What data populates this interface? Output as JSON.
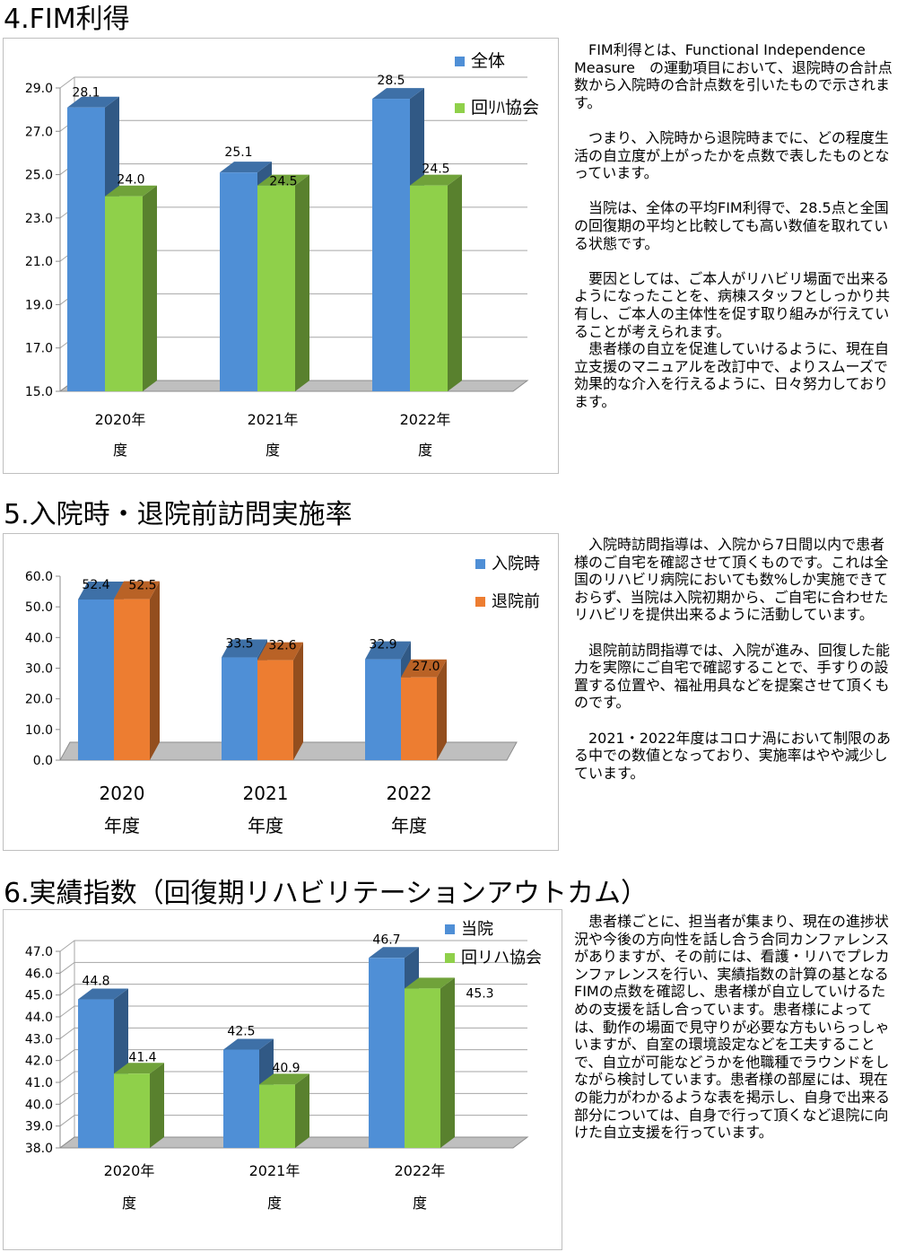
{
  "sections": [
    {
      "title": "4.FIM利得",
      "paragraphs": [
        "FIM利得とは、Functional Independence Measure　の運動項目において、退院時の合計点数から入院時の合計点数を引いたもので示されます。",
        "つまり、入院時から退院時までに、どの程度生活の自立度が上がったかを点数で表したものとなっています。",
        "当院は、全体の平均FIM利得で、28.5点と全国の回復期の平均と比較しても高い数値を取れている状態です。",
        "要因としては、ご本人がリハビリ場面で出来るようになったことを、病棟スタッフとしっかり共有し、ご本人の主体性を促す取り組みが行えていることが考えられます。",
        "患者様の自立を促進していけるように、現在自立支援のマニュアルを改訂中で、よりスムーズで効果的な介入を行えるように、日々努力しております。"
      ]
    },
    {
      "title": "5.入院時・退院前訪問実施率",
      "paragraphs": [
        "入院時訪問指導は、入院から7日間以内で患者様のご自宅を確認させて頂くものです。これは全国のリハビリ病院においても数%しか実施できておらず、当院は入院初期から、ご自宅に合わせたリハビリを提供出来るように活動しています。",
        "退院前訪問指導では、入院が進み、回復した能力を実際にご自宅で確認することで、手すりの設置する位置や、福祉用具などを提案させて頂くものです。",
        "2021・2022年度はコロナ渦において制限のある中での数値となっており、実施率はやや減少しています。"
      ]
    },
    {
      "title": "6.実績指数（回復期リハビリテーションアウトカム）",
      "paragraphs": [
        "患者様ごとに、担当者が集まり、現在の進捗状況や今後の方向性を話し合う合同カンファレンスがありますが、その前には、看護・リハでプレカンファレンスを行い、実績指数の計算の基となるFIMの点数を確認し、患者様が自立していけるための支援を話し合っています。患者様によっては、動作の場面で見守りが必要な方もいらっしゃいますが、自室の環境設定などを工夫することで、自立が可能などうかを他職種でラウンドをしながら検討しています。患者様の部屋には、現在の能力がわかるような表を掲示し、自身で出来る部分については、自身で行って頂くなど退院に向けた自立支援を行っています。"
      ]
    }
  ],
  "chart_data": [
    {
      "type": "bar",
      "categories": [
        "2020年度",
        "2021年度",
        "2022年度"
      ],
      "category_lines": [
        [
          "2020年",
          "度"
        ],
        [
          "2021年",
          "度"
        ],
        [
          "2022年",
          "度"
        ]
      ],
      "series": [
        {
          "name": "全体",
          "values": [
            28.1,
            25.1,
            28.5
          ],
          "color": "#4f8fd6",
          "data_labels": [
            "28.1",
            "25.1",
            "28.5"
          ]
        },
        {
          "name": "回ﾘﾊ協会",
          "values": [
            24.0,
            24.5,
            24.5
          ],
          "color": "#8fd04a",
          "data_labels": [
            "24.0",
            "24.5",
            "24.5"
          ]
        }
      ],
      "ylim": [
        15.0,
        29.0
      ],
      "yticks": [
        "15.0",
        "17.0",
        "19.0",
        "21.0",
        "23.0",
        "25.0",
        "27.0",
        "29.0"
      ],
      "legend_position": "top-right",
      "grid": true
    },
    {
      "type": "bar",
      "categories": [
        "2020年度",
        "2021年度",
        "2022年度"
      ],
      "category_lines": [
        [
          "2020",
          "年度"
        ],
        [
          "2021",
          "年度"
        ],
        [
          "2022",
          "年度"
        ]
      ],
      "series": [
        {
          "name": "入院時",
          "values": [
            52.4,
            33.5,
            32.9
          ],
          "color": "#4f8fd6",
          "data_labels": [
            "52.4",
            "33.5",
            "32.9"
          ]
        },
        {
          "name": "退院前",
          "values": [
            52.5,
            32.6,
            27.0
          ],
          "color": "#ed7d31",
          "data_labels": [
            "52.5",
            "32.6",
            "27.0"
          ]
        }
      ],
      "ylim": [
        0.0,
        60.0
      ],
      "yticks": [
        "0.0",
        "10.0",
        "20.0",
        "30.0",
        "40.0",
        "50.0",
        "60.0"
      ],
      "legend_position": "top-right",
      "grid": false
    },
    {
      "type": "bar",
      "categories": [
        "2020年度",
        "2021年度",
        "2022年度"
      ],
      "category_lines": [
        [
          "2020年",
          "度"
        ],
        [
          "2021年",
          "度"
        ],
        [
          "2022年",
          "度"
        ]
      ],
      "series": [
        {
          "name": "当院",
          "values": [
            44.8,
            42.5,
            46.7
          ],
          "color": "#4f8fd6",
          "data_labels": [
            "44.8",
            "42.5",
            "46.7"
          ]
        },
        {
          "name": "回リハ協会",
          "values": [
            41.4,
            40.9,
            45.3
          ],
          "color": "#8fd04a",
          "data_labels": [
            "41.4",
            "40.9",
            "45.3"
          ]
        }
      ],
      "ylim": [
        38.0,
        47.0
      ],
      "yticks": [
        "38.0",
        "39.0",
        "40.0",
        "41.0",
        "42.0",
        "43.0",
        "44.0",
        "45.0",
        "46.0",
        "47.0"
      ],
      "legend_position": "top-right",
      "grid": true
    }
  ]
}
